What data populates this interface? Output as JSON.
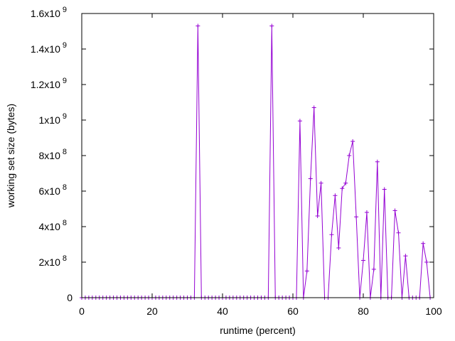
{
  "chart_data": {
    "type": "line",
    "xlabel": "runtime (percent)",
    "ylabel": "working set size (bytes)",
    "xlim": [
      0,
      100
    ],
    "ylim": [
      0,
      1600000000
    ],
    "x_ticks": [
      {
        "value": 0,
        "label": "0"
      },
      {
        "value": 20,
        "label": "20"
      },
      {
        "value": 40,
        "label": "40"
      },
      {
        "value": 60,
        "label": "60"
      },
      {
        "value": 80,
        "label": "80"
      },
      {
        "value": 100,
        "label": "100"
      }
    ],
    "y_ticks": [
      {
        "value": 0,
        "label": "0",
        "exp": ""
      },
      {
        "value": 200000000,
        "label": "2x10",
        "exp": "8"
      },
      {
        "value": 400000000,
        "label": "4x10",
        "exp": "8"
      },
      {
        "value": 600000000,
        "label": "6x10",
        "exp": "8"
      },
      {
        "value": 800000000,
        "label": "8x10",
        "exp": "8"
      },
      {
        "value": 1000000000,
        "label": "1x10",
        "exp": "9"
      },
      {
        "value": 1200000000,
        "label": "1.2x10",
        "exp": "9"
      },
      {
        "value": 1400000000,
        "label": "1.4x10",
        "exp": "9"
      },
      {
        "value": 1600000000,
        "label": "1.6x10",
        "exp": "9"
      }
    ],
    "grid": false,
    "series": [
      {
        "color": "#9400d3",
        "marker": "plus",
        "points": [
          [
            0,
            0
          ],
          [
            1,
            0
          ],
          [
            2,
            0
          ],
          [
            3,
            0
          ],
          [
            4,
            0
          ],
          [
            5,
            0
          ],
          [
            6,
            0
          ],
          [
            7,
            0
          ],
          [
            8,
            0
          ],
          [
            9,
            0
          ],
          [
            10,
            0
          ],
          [
            11,
            0
          ],
          [
            12,
            0
          ],
          [
            13,
            0
          ],
          [
            14,
            0
          ],
          [
            15,
            0
          ],
          [
            16,
            0
          ],
          [
            17,
            0
          ],
          [
            18,
            0
          ],
          [
            19,
            0
          ],
          [
            20,
            0
          ],
          [
            21,
            0
          ],
          [
            22,
            0
          ],
          [
            23,
            0
          ],
          [
            24,
            0
          ],
          [
            25,
            0
          ],
          [
            26,
            0
          ],
          [
            27,
            0
          ],
          [
            28,
            0
          ],
          [
            29,
            0
          ],
          [
            30,
            0
          ],
          [
            31,
            0
          ],
          [
            32,
            0
          ],
          [
            33,
            1530000000
          ],
          [
            34,
            0
          ],
          [
            35,
            0
          ],
          [
            36,
            0
          ],
          [
            37,
            0
          ],
          [
            38,
            0
          ],
          [
            39,
            0
          ],
          [
            40,
            0
          ],
          [
            41,
            0
          ],
          [
            42,
            0
          ],
          [
            43,
            0
          ],
          [
            44,
            0
          ],
          [
            45,
            0
          ],
          [
            46,
            0
          ],
          [
            47,
            0
          ],
          [
            48,
            0
          ],
          [
            49,
            0
          ],
          [
            50,
            0
          ],
          [
            51,
            0
          ],
          [
            52,
            0
          ],
          [
            53,
            0
          ],
          [
            54,
            1530000000
          ],
          [
            55,
            0
          ],
          [
            56,
            0
          ],
          [
            57,
            0
          ],
          [
            58,
            0
          ],
          [
            59,
            0
          ],
          [
            60,
            0
          ],
          [
            61,
            0
          ],
          [
            62,
            995000000
          ],
          [
            63,
            0
          ],
          [
            64,
            150000000
          ],
          [
            65,
            670000000
          ],
          [
            66,
            1070000000
          ],
          [
            67,
            460000000
          ],
          [
            68,
            645000000
          ],
          [
            69,
            0
          ],
          [
            70,
            0
          ],
          [
            71,
            355000000
          ],
          [
            72,
            575000000
          ],
          [
            73,
            280000000
          ],
          [
            74,
            615000000
          ],
          [
            75,
            645000000
          ],
          [
            76,
            800000000
          ],
          [
            77,
            880000000
          ],
          [
            78,
            455000000
          ],
          [
            79,
            0
          ],
          [
            80,
            210000000
          ],
          [
            81,
            480000000
          ],
          [
            82,
            0
          ],
          [
            83,
            160000000
          ],
          [
            84,
            765000000
          ],
          [
            85,
            0
          ],
          [
            86,
            610000000
          ],
          [
            87,
            0
          ],
          [
            88,
            0
          ],
          [
            89,
            490000000
          ],
          [
            90,
            365000000
          ],
          [
            91,
            0
          ],
          [
            92,
            235000000
          ],
          [
            93,
            0
          ],
          [
            94,
            0
          ],
          [
            95,
            0
          ],
          [
            96,
            0
          ],
          [
            97,
            305000000
          ],
          [
            98,
            200000000
          ],
          [
            99,
            0
          ]
        ]
      }
    ]
  }
}
